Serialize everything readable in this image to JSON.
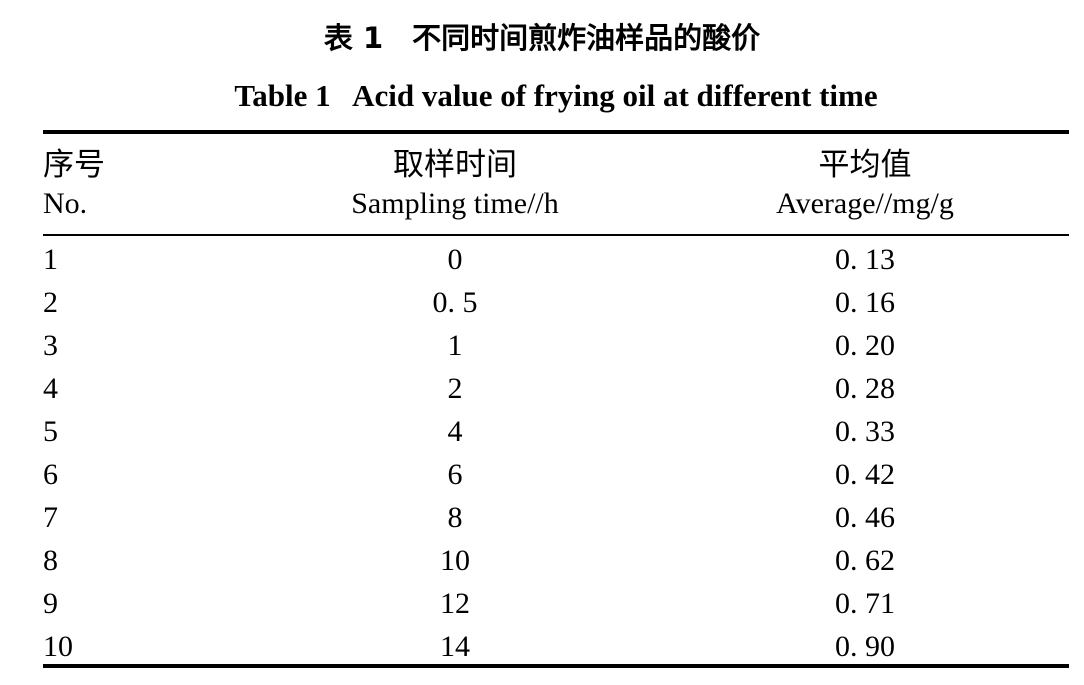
{
  "caption": {
    "zh": "表 1　不同时间煎炸油样品的酸价",
    "en": "Table 1   Acid value of frying oil at different time"
  },
  "headers": {
    "no": {
      "zh": "序号",
      "en": "No."
    },
    "time": {
      "zh": "取样时间",
      "en": "Sampling time//h"
    },
    "avg": {
      "zh": "平均值",
      "en": "Average//mg/g"
    }
  },
  "rows": [
    {
      "no": "1",
      "time": "0",
      "avg": "0. 13"
    },
    {
      "no": "2",
      "time": "0. 5",
      "avg": "0. 16"
    },
    {
      "no": "3",
      "time": "1",
      "avg": "0. 20"
    },
    {
      "no": "4",
      "time": "2",
      "avg": "0. 28"
    },
    {
      "no": "5",
      "time": "4",
      "avg": "0. 33"
    },
    {
      "no": "6",
      "time": "6",
      "avg": "0. 42"
    },
    {
      "no": "7",
      "time": "8",
      "avg": "0. 46"
    },
    {
      "no": "8",
      "time": "10",
      "avg": "0. 62"
    },
    {
      "no": "9",
      "time": "12",
      "avg": "0. 71"
    },
    {
      "no": "10",
      "time": "14",
      "avg": "0. 90"
    }
  ]
}
